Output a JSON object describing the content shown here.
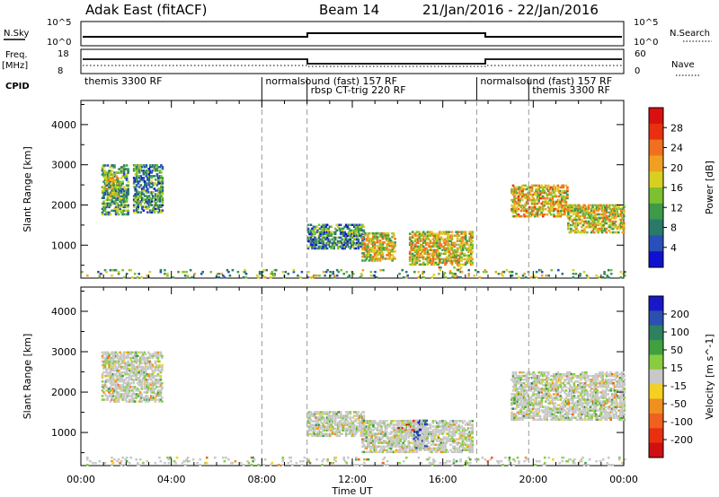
{
  "header": {
    "station": "Adak East (fitACF)",
    "beam": "Beam 14",
    "daterange": "21/Jan/2016 - 22/Jan/2016"
  },
  "panels": {
    "nsky_label": "N.Sky",
    "nsky_ticks": [
      "10^5",
      "10^0"
    ],
    "nsearch_label": "N.Search",
    "nsearch_ticks": [
      "10^5",
      "10^0"
    ],
    "freq_label": "Freq.",
    "freq_unit": "[MHz]",
    "freq_ticks": [
      "18",
      "8"
    ],
    "nave_label": "Nave",
    "nave_ticks": [
      "60",
      "0"
    ],
    "cpid_label": "CPID"
  },
  "cpid_segments": [
    {
      "label": "themis 3300 RF",
      "start": 0.0,
      "end": 8.0
    },
    {
      "label": "normalsound (fast) 157 RF",
      "start": 8.0,
      "end": 10.0
    },
    {
      "label": "rbsp CT-trig 220 RF",
      "start": 10.0,
      "end": 17.5
    },
    {
      "label": "normalsound (fast) 157 RF",
      "start": 17.5,
      "end": 19.8
    },
    {
      "label": "themis 3300 RF",
      "start": 19.8,
      "end": 24.0
    }
  ],
  "colors": {
    "power": [
      "#1010d0",
      "#2850b8",
      "#2a7a6a",
      "#3d9a48",
      "#7dc030",
      "#d8d020",
      "#f0a020",
      "#f07020",
      "#e83010",
      "#d81010"
    ],
    "velocity": [
      "#1818c8",
      "#2a50b0",
      "#2f8060",
      "#40a040",
      "#88cc40",
      "#c8c8c8",
      "#f4d020",
      "#f09020",
      "#f06020",
      "#e83010",
      "#d01010"
    ]
  },
  "chart_data": [
    {
      "type": "heatmap",
      "name": "power",
      "xlabel": "Time UT",
      "ylabel": "Slant Range [km]",
      "xlim": [
        0,
        24
      ],
      "ylim": [
        180,
        4600
      ],
      "xticks": [
        "00:00",
        "04:00",
        "08:00",
        "12:00",
        "16:00",
        "20:00",
        "00:00"
      ],
      "yticks": [
        1000,
        2000,
        3000,
        4000
      ],
      "colorbar_label": "Power [dB]",
      "colorbar_ticks": [
        4,
        8,
        12,
        16,
        20,
        24,
        28
      ],
      "colorbar_range": [
        0,
        30
      ],
      "regions": [
        {
          "t0": 0.9,
          "t1": 2.1,
          "r0": 1750,
          "r1": 3000,
          "level": 0.35
        },
        {
          "t0": 1.1,
          "t1": 1.6,
          "r0": 2200,
          "r1": 2800,
          "level": 0.5
        },
        {
          "t0": 2.3,
          "t1": 3.6,
          "r0": 1800,
          "r1": 3000,
          "level": 0.3
        },
        {
          "t0": 10.0,
          "t1": 12.5,
          "r0": 900,
          "r1": 1500,
          "level": 0.3
        },
        {
          "t0": 12.4,
          "t1": 13.9,
          "r0": 600,
          "r1": 1300,
          "level": 0.55
        },
        {
          "t0": 14.5,
          "t1": 17.3,
          "r0": 500,
          "r1": 1350,
          "level": 0.55
        },
        {
          "t0": 15.5,
          "t1": 16.8,
          "r0": 200,
          "r1": 500,
          "level": 0.6
        },
        {
          "t0": 19.0,
          "t1": 21.5,
          "r0": 1700,
          "r1": 2500,
          "level": 0.6
        },
        {
          "t0": 21.5,
          "t1": 24.0,
          "r0": 1300,
          "r1": 2000,
          "level": 0.55
        },
        {
          "t0": 0.0,
          "t1": 24.0,
          "r0": 180,
          "r1": 400,
          "level": 0.4
        }
      ]
    },
    {
      "type": "heatmap",
      "name": "velocity",
      "xlabel": "Time UT",
      "ylabel": "Slant Range [km]",
      "xlim": [
        0,
        24
      ],
      "ylim": [
        180,
        4600
      ],
      "xticks": [
        "00:00",
        "04:00",
        "08:00",
        "12:00",
        "16:00",
        "20:00",
        "00:00"
      ],
      "yticks": [
        1000,
        2000,
        3000,
        4000
      ],
      "colorbar_label": "Velocity [m s^-1]",
      "colorbar_ticks": [
        "200",
        "100",
        "50",
        "15",
        "-15",
        "-50",
        "-100",
        "-200"
      ],
      "regions": [
        {
          "t0": 0.9,
          "t1": 3.6,
          "r0": 1750,
          "r1": 3000,
          "level": 0.5
        },
        {
          "t0": 10.0,
          "t1": 12.5,
          "r0": 900,
          "r1": 1500,
          "level": 0.5
        },
        {
          "t0": 12.4,
          "t1": 17.3,
          "r0": 500,
          "r1": 1300,
          "level": 0.5
        },
        {
          "t0": 14.7,
          "t1": 15.3,
          "r0": 600,
          "r1": 1300,
          "level": 0.15
        },
        {
          "t0": 14.0,
          "t1": 14.7,
          "r0": 1000,
          "r1": 1300,
          "level": 0.8
        },
        {
          "t0": 19.0,
          "t1": 24.0,
          "r0": 1300,
          "r1": 2500,
          "level": 0.5
        },
        {
          "t0": 0.0,
          "t1": 24.0,
          "r0": 180,
          "r1": 400,
          "level": 0.55
        }
      ]
    }
  ]
}
